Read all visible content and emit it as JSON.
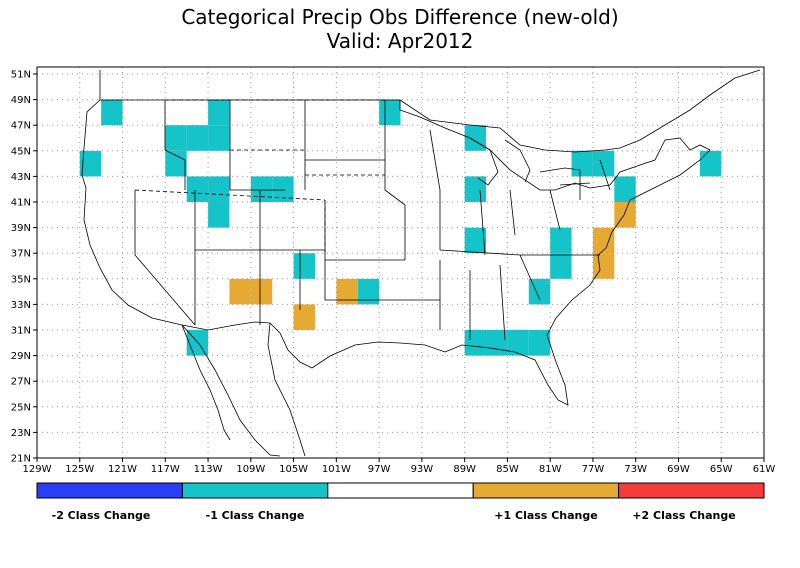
{
  "title": {
    "line1": "Categorical Precip Obs Difference (new-old)",
    "line2": "Valid: Apr2012"
  },
  "axes": {
    "lat_labels": [
      "51N",
      "49N",
      "47N",
      "45N",
      "43N",
      "41N",
      "39N",
      "37N",
      "35N",
      "33N",
      "31N",
      "29N",
      "27N",
      "25N",
      "23N",
      "21N"
    ],
    "lat_values": [
      51,
      49,
      47,
      45,
      43,
      41,
      39,
      37,
      35,
      33,
      31,
      29,
      27,
      25,
      23,
      21
    ],
    "lon_labels": [
      "129W",
      "125W",
      "121W",
      "117W",
      "113W",
      "109W",
      "105W",
      "101W",
      "97W",
      "93W",
      "89W",
      "85W",
      "81W",
      "77W",
      "73W",
      "69W",
      "65W",
      "61W"
    ],
    "lon_values": [
      -129,
      -125,
      -121,
      -117,
      -113,
      -109,
      -105,
      -101,
      -97,
      -93,
      -89,
      -85,
      -81,
      -77,
      -73,
      -69,
      -65,
      -61
    ],
    "lon_range": [
      -129,
      -61
    ],
    "lat_range": [
      21,
      52
    ],
    "grid": true
  },
  "colors": {
    "minus2": "#2a3ef5",
    "minus1": "#15c4c8",
    "zero": "#ffffff",
    "plus1": "#e6a931",
    "plus2": "#f53c3c"
  },
  "legend": {
    "segments": [
      "minus2",
      "minus1",
      "zero",
      "plus1",
      "plus2"
    ],
    "labels": [
      {
        "key": "minus2",
        "text": "-2 Class Change"
      },
      {
        "key": "minus1",
        "text": "-1 Class Change"
      },
      {
        "key": "plus1",
        "text": "+1 Class Change"
      },
      {
        "key": "plus2",
        "text": "+2 Class Change"
      }
    ]
  },
  "chart_data": {
    "type": "heatmap",
    "title": "Categorical Precip Obs Difference (new-old)",
    "subtitle": "Valid: Apr2012",
    "grid_cell_deg": 2,
    "cells_minus1": [
      [
        -122,
        48
      ],
      [
        -124,
        44
      ],
      [
        -116,
        46
      ],
      [
        -114,
        46
      ],
      [
        -112,
        48
      ],
      [
        -112,
        46
      ],
      [
        -116,
        44
      ],
      [
        -114,
        42
      ],
      [
        -112,
        42
      ],
      [
        -112,
        40
      ],
      [
        -108,
        42
      ],
      [
        -106,
        42
      ],
      [
        -104,
        36
      ],
      [
        -114,
        30
      ],
      [
        -98,
        34
      ],
      [
        -96,
        48
      ],
      [
        -88,
        46
      ],
      [
        -88,
        42
      ],
      [
        -88,
        38
      ],
      [
        -80,
        38
      ],
      [
        -80,
        36
      ],
      [
        -82,
        34
      ],
      [
        -76,
        44
      ],
      [
        -78,
        44
      ],
      [
        -74,
        42
      ],
      [
        -66,
        44
      ],
      [
        -88,
        30
      ],
      [
        -86,
        30
      ],
      [
        -84,
        30
      ],
      [
        -82,
        30
      ]
    ],
    "cells_plus1": [
      [
        -110,
        34
      ],
      [
        -108,
        34
      ],
      [
        -104,
        32
      ],
      [
        -100,
        34
      ],
      [
        -74,
        40
      ],
      [
        -76,
        38
      ],
      [
        -76,
        36
      ]
    ],
    "cells_minus2": [],
    "cells_plus2": []
  }
}
